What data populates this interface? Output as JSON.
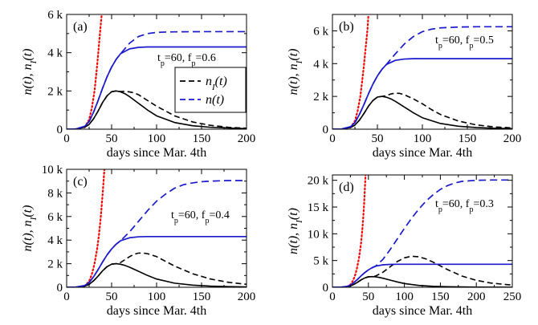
{
  "colors": {
    "black": "#000000",
    "blue": "#1a1acc",
    "red": "#ff0000"
  },
  "legend": {
    "items": [
      {
        "label": "n",
        "sub": "I",
        "suffix": "(t)",
        "color": "#000000",
        "dash": "dashed"
      },
      {
        "label": "n(t)",
        "sub": "",
        "suffix": "",
        "color": "#1a1acc",
        "dash": "dashed"
      }
    ]
  },
  "chart_data": [
    {
      "type": "line",
      "panel_label": "(a)",
      "param_label": "t_p=60, f_p=0.6",
      "tp": 60,
      "fp": 0.6,
      "xlabel": "days since Mar. 4th",
      "ylabel": "n(t), n_I(t)",
      "xlim": [
        0,
        200
      ],
      "ylim": [
        0,
        6000
      ],
      "xticks": [
        "0",
        "50",
        "100",
        "150",
        "200"
      ],
      "yticks": [
        "0",
        "2 k",
        "4 k",
        "6 k"
      ],
      "series": [
        {
          "style": "red-dotted",
          "x": [
            20,
            25,
            28,
            31,
            33,
            35,
            37,
            39
          ],
          "y": [
            100,
            500,
            1100,
            2000,
            2900,
            3900,
            5000,
            6000
          ]
        },
        {
          "style": "black-solid",
          "x": [
            0,
            10,
            20,
            25,
            30,
            35,
            40,
            45,
            50,
            55,
            60,
            65,
            70,
            80,
            90,
            100,
            120,
            140,
            160,
            180,
            200
          ],
          "y": [
            0,
            10,
            100,
            250,
            550,
            950,
            1400,
            1750,
            1960,
            2000,
            1950,
            1850,
            1700,
            1350,
            1000,
            700,
            350,
            180,
            100,
            60,
            30
          ]
        },
        {
          "style": "black-dashed",
          "x": [
            0,
            10,
            20,
            25,
            30,
            35,
            40,
            45,
            50,
            55,
            60,
            65,
            70,
            75,
            80,
            90,
            100,
            120,
            140,
            160,
            180,
            200
          ],
          "y": [
            0,
            10,
            100,
            250,
            550,
            950,
            1400,
            1750,
            1960,
            2000,
            1970,
            1980,
            1950,
            1900,
            1800,
            1500,
            1200,
            700,
            380,
            200,
            100,
            50
          ]
        },
        {
          "style": "blue-solid",
          "x": [
            0,
            10,
            20,
            25,
            30,
            35,
            40,
            45,
            50,
            55,
            60,
            70,
            80,
            90,
            100,
            120,
            150,
            200
          ],
          "y": [
            0,
            10,
            150,
            400,
            900,
            1500,
            2150,
            2750,
            3250,
            3650,
            3950,
            4200,
            4280,
            4300,
            4300,
            4300,
            4300,
            4300
          ]
        },
        {
          "style": "blue-dashed",
          "x": [
            0,
            10,
            20,
            25,
            30,
            35,
            40,
            45,
            50,
            55,
            60,
            70,
            80,
            90,
            100,
            110,
            120,
            150,
            200
          ],
          "y": [
            0,
            10,
            150,
            400,
            900,
            1500,
            2150,
            2750,
            3250,
            3650,
            3950,
            4500,
            4850,
            5000,
            5060,
            5080,
            5090,
            5100,
            5100
          ]
        }
      ]
    },
    {
      "type": "line",
      "panel_label": "(b)",
      "param_label": "t_p=60, f_p=0.5",
      "tp": 60,
      "fp": 0.5,
      "xlabel": "days since Mar. 4th",
      "ylabel": "n(t), n_I(t)",
      "xlim": [
        0,
        200
      ],
      "ylim": [
        0,
        7000
      ],
      "xticks": [
        "0",
        "50",
        "100",
        "150",
        "200"
      ],
      "yticks": [
        "0",
        "2 k",
        "4 k",
        "6 k"
      ],
      "ytick_values": [
        0,
        2000,
        4000,
        6000
      ],
      "series": [
        {
          "style": "red-dotted",
          "x": [
            20,
            25,
            28,
            31,
            33,
            35,
            37,
            39,
            40
          ],
          "y": [
            100,
            500,
            1100,
            2000,
            2900,
            3900,
            5000,
            6100,
            7000
          ]
        },
        {
          "style": "black-solid",
          "x": [
            0,
            10,
            20,
            25,
            30,
            35,
            40,
            45,
            50,
            55,
            60,
            65,
            70,
            80,
            90,
            100,
            120,
            140,
            160,
            180,
            200
          ],
          "y": [
            0,
            10,
            100,
            250,
            550,
            950,
            1400,
            1750,
            1960,
            2000,
            1950,
            1850,
            1700,
            1350,
            1000,
            700,
            350,
            180,
            100,
            60,
            30
          ]
        },
        {
          "style": "black-dashed",
          "x": [
            0,
            10,
            20,
            25,
            30,
            35,
            40,
            45,
            50,
            55,
            60,
            65,
            70,
            75,
            80,
            90,
            100,
            110,
            120,
            140,
            160,
            180,
            200
          ],
          "y": [
            0,
            10,
            100,
            250,
            550,
            950,
            1400,
            1750,
            1960,
            2000,
            2050,
            2150,
            2200,
            2180,
            2100,
            1850,
            1550,
            1200,
            900,
            500,
            260,
            140,
            80
          ]
        },
        {
          "style": "blue-solid",
          "x": [
            0,
            10,
            20,
            25,
            30,
            35,
            40,
            45,
            50,
            55,
            60,
            70,
            80,
            90,
            100,
            120,
            150,
            200
          ],
          "y": [
            0,
            10,
            150,
            400,
            900,
            1500,
            2150,
            2750,
            3250,
            3650,
            3950,
            4200,
            4280,
            4300,
            4300,
            4300,
            4300,
            4300
          ]
        },
        {
          "style": "blue-dashed",
          "x": [
            0,
            10,
            20,
            25,
            30,
            35,
            40,
            45,
            50,
            55,
            60,
            70,
            80,
            90,
            100,
            110,
            120,
            140,
            160,
            200
          ],
          "y": [
            0,
            10,
            150,
            400,
            900,
            1500,
            2150,
            2750,
            3250,
            3650,
            3950,
            4600,
            5200,
            5650,
            5950,
            6100,
            6180,
            6230,
            6250,
            6250
          ]
        }
      ]
    },
    {
      "type": "line",
      "panel_label": "(c)",
      "param_label": "t_p=60, f_p=0.4",
      "tp": 60,
      "fp": 0.4,
      "xlabel": "days since Mar. 4th",
      "ylabel": "n(t), n_I(t)",
      "xlim": [
        0,
        200
      ],
      "ylim": [
        0,
        10000
      ],
      "xticks": [
        "0",
        "50",
        "100",
        "150",
        "200"
      ],
      "yticks": [
        "0",
        "2 k",
        "4 k",
        "6 k",
        "8 k",
        "10 k"
      ],
      "series": [
        {
          "style": "red-dotted",
          "x": [
            20,
            25,
            28,
            31,
            34,
            36,
            38,
            40,
            42
          ],
          "y": [
            100,
            500,
            1100,
            2000,
            3300,
            4500,
            6000,
            7900,
            10000
          ]
        },
        {
          "style": "black-solid",
          "x": [
            0,
            10,
            20,
            25,
            30,
            35,
            40,
            45,
            50,
            55,
            60,
            65,
            70,
            80,
            90,
            100,
            120,
            140,
            160,
            180,
            200
          ],
          "y": [
            0,
            10,
            100,
            250,
            550,
            950,
            1400,
            1750,
            1960,
            2000,
            1950,
            1850,
            1700,
            1350,
            1000,
            700,
            350,
            180,
            100,
            60,
            30
          ]
        },
        {
          "style": "black-dashed",
          "x": [
            0,
            10,
            20,
            25,
            30,
            35,
            40,
            45,
            50,
            55,
            60,
            65,
            70,
            75,
            80,
            85,
            90,
            100,
            110,
            120,
            140,
            160,
            180,
            200
          ],
          "y": [
            0,
            10,
            100,
            250,
            550,
            950,
            1400,
            1750,
            1960,
            2000,
            2100,
            2350,
            2600,
            2800,
            2900,
            2900,
            2850,
            2600,
            2200,
            1800,
            1150,
            700,
            420,
            250
          ]
        },
        {
          "style": "blue-solid",
          "x": [
            0,
            10,
            20,
            25,
            30,
            35,
            40,
            45,
            50,
            55,
            60,
            70,
            80,
            90,
            100,
            120,
            150,
            200
          ],
          "y": [
            0,
            10,
            150,
            400,
            900,
            1500,
            2150,
            2750,
            3250,
            3650,
            3950,
            4200,
            4280,
            4300,
            4300,
            4300,
            4300,
            4300
          ]
        },
        {
          "style": "blue-dashed",
          "x": [
            0,
            10,
            20,
            25,
            30,
            35,
            40,
            45,
            50,
            55,
            60,
            70,
            80,
            90,
            100,
            110,
            120,
            130,
            140,
            150,
            160,
            180,
            200
          ],
          "y": [
            0,
            10,
            150,
            400,
            900,
            1500,
            2150,
            2750,
            3250,
            3650,
            3950,
            4700,
            5600,
            6500,
            7300,
            7900,
            8400,
            8700,
            8850,
            8950,
            9000,
            9050,
            9050
          ]
        }
      ]
    },
    {
      "type": "line",
      "panel_label": "(d)",
      "param_label": "t_p=60, f_p=0.3",
      "tp": 60,
      "fp": 0.3,
      "xlabel": "days since Mar. 4th",
      "ylabel": "n(t), n_I(t)",
      "xlim": [
        0,
        250
      ],
      "ylim": [
        0,
        21000
      ],
      "xticks": [
        "0",
        "50",
        "100",
        "150",
        "200",
        "250"
      ],
      "yticks": [
        "0",
        "5 k",
        "10 k",
        "15 k",
        "20 k"
      ],
      "ytick_values": [
        0,
        5000,
        10000,
        15000,
        20000
      ],
      "series": [
        {
          "style": "red-dotted",
          "x": [
            20,
            25,
            28,
            31,
            34,
            37,
            40,
            42,
            44,
            46
          ],
          "y": [
            100,
            500,
            1100,
            2000,
            3500,
            5500,
            8500,
            11500,
            15500,
            21000
          ]
        },
        {
          "style": "black-solid",
          "x": [
            0,
            10,
            20,
            25,
            30,
            35,
            40,
            45,
            50,
            55,
            60,
            65,
            70,
            80,
            90,
            100,
            120,
            140,
            160,
            180,
            200,
            250
          ],
          "y": [
            0,
            10,
            100,
            250,
            550,
            950,
            1400,
            1750,
            1960,
            2000,
            1950,
            1850,
            1700,
            1350,
            1000,
            700,
            350,
            180,
            100,
            60,
            30,
            10
          ]
        },
        {
          "style": "black-dashed",
          "x": [
            0,
            10,
            20,
            25,
            30,
            35,
            40,
            45,
            50,
            55,
            60,
            70,
            80,
            90,
            100,
            110,
            120,
            130,
            140,
            150,
            160,
            180,
            200,
            220,
            250
          ],
          "y": [
            0,
            10,
            100,
            250,
            550,
            950,
            1400,
            1750,
            1960,
            2000,
            2100,
            2800,
            3800,
            4800,
            5500,
            5800,
            5700,
            5300,
            4700,
            4000,
            3300,
            2100,
            1300,
            800,
            400
          ]
        },
        {
          "style": "blue-solid",
          "x": [
            0,
            10,
            20,
            25,
            30,
            35,
            40,
            45,
            50,
            55,
            60,
            70,
            80,
            90,
            100,
            120,
            150,
            200,
            250
          ],
          "y": [
            0,
            10,
            150,
            400,
            900,
            1500,
            2150,
            2750,
            3250,
            3650,
            3950,
            4200,
            4280,
            4300,
            4300,
            4300,
            4300,
            4300,
            4300
          ]
        },
        {
          "style": "blue-dashed",
          "x": [
            0,
            10,
            20,
            25,
            30,
            35,
            40,
            45,
            50,
            55,
            60,
            70,
            80,
            90,
            100,
            110,
            120,
            130,
            140,
            150,
            160,
            170,
            180,
            200,
            220,
            250
          ],
          "y": [
            0,
            10,
            150,
            400,
            900,
            1500,
            2150,
            2750,
            3250,
            3650,
            3950,
            5200,
            7000,
            9000,
            11000,
            12900,
            14600,
            16100,
            17300,
            18300,
            19000,
            19500,
            19800,
            20000,
            20050,
            20050
          ]
        }
      ]
    }
  ]
}
